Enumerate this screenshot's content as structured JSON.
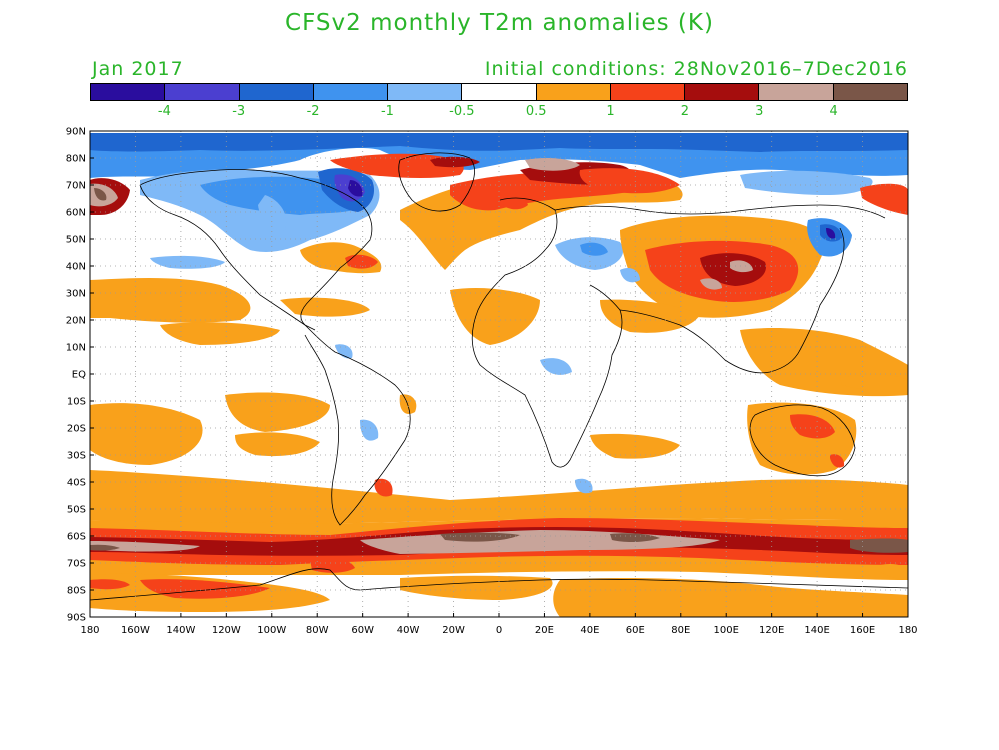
{
  "title": "CFSv2 monthly T2m anomalies (K)",
  "month": "Jan 2017",
  "initial_conditions": "Initial conditions: 28Nov2016–7Dec2016",
  "legend": {
    "colors": [
      "#2a0d9e",
      "#4b3fd0",
      "#1f66cf",
      "#3f93ef",
      "#7fb9f7",
      "#ffffff",
      "#f9a11b",
      "#f5421a",
      "#a50d0d",
      "#c8a49a",
      "#7a5648"
    ],
    "labels": [
      "-4",
      "-3",
      "-2",
      "-1",
      "-0.5",
      "0.5",
      "1",
      "2",
      "3",
      "4"
    ]
  },
  "axes": {
    "lat_labels": [
      "90N",
      "80N",
      "70N",
      "60N",
      "50N",
      "40N",
      "30N",
      "20N",
      "10N",
      "EQ",
      "10S",
      "20S",
      "30S",
      "40S",
      "50S",
      "60S",
      "70S",
      "80S",
      "90S"
    ],
    "lon_labels": [
      "180",
      "160W",
      "140W",
      "120W",
      "100W",
      "80W",
      "60W",
      "40W",
      "20W",
      "0",
      "20E",
      "40E",
      "60E",
      "80E",
      "100E",
      "120E",
      "140E",
      "160E",
      "180"
    ]
  },
  "colors": {
    "text_accent": "#2ab52a"
  }
}
